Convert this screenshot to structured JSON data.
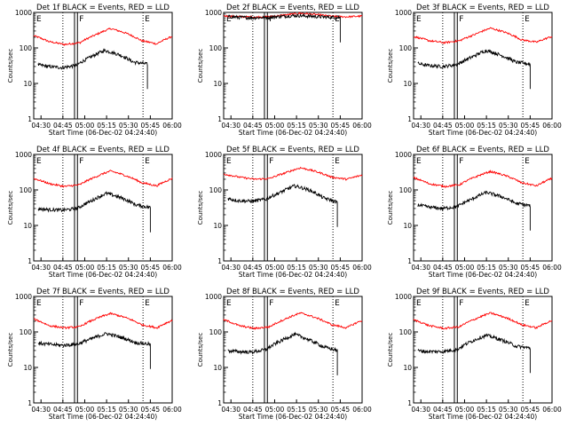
{
  "chart_data": {
    "type": "line",
    "ylabel": "Counts/sec",
    "xlabel": "Start Time (06-Dec-02 04:24:40)",
    "yscale": "log",
    "ylim": [
      1,
      1000
    ],
    "yticks": [
      "1",
      "10",
      "100",
      "1000"
    ],
    "xlim_minutes": [
      0,
      95
    ],
    "xticks": [
      "04:30",
      "04:45",
      "05:00",
      "05:15",
      "05:30",
      "05:45",
      "06:00"
    ],
    "marker_labels": [
      "E",
      "F",
      "E"
    ],
    "series_colors": {
      "events": "#000000",
      "lld": "#ff0000"
    },
    "panels": [
      {
        "title": "Det 1f BLACK = Events, RED = LLD",
        "lld": [
          220,
          150,
          125,
          140,
          230,
          350,
          260,
          160,
          130,
          210
        ],
        "events": [
          35,
          30,
          28,
          32,
          55,
          85,
          65,
          40,
          35,
          0
        ],
        "drop_minute": 78
      },
      {
        "title": "Det 2f BLACK = Events, RED = LLD",
        "lld": [
          800,
          760,
          740,
          760,
          850,
          950,
          870,
          780,
          750,
          790
        ],
        "events": [
          780,
          730,
          710,
          720,
          780,
          820,
          780,
          740,
          720,
          0
        ],
        "drop_minute": 80
      },
      {
        "title": "Det 3f BLACK = Events, RED = LLD",
        "lld": [
          210,
          160,
          140,
          160,
          240,
          360,
          270,
          170,
          145,
          210
        ],
        "events": [
          38,
          32,
          30,
          34,
          55,
          85,
          62,
          40,
          35,
          0
        ],
        "drop_minute": 80
      },
      {
        "title": "Det 4f BLACK = Events, RED = LLD",
        "lld": [
          210,
          150,
          125,
          140,
          230,
          340,
          250,
          160,
          130,
          210
        ],
        "events": [
          30,
          28,
          27,
          30,
          50,
          80,
          60,
          38,
          32,
          0
        ],
        "drop_minute": 80
      },
      {
        "title": "Det 5f BLACK = Events, RED = LLD",
        "lld": [
          280,
          230,
          200,
          210,
          300,
          420,
          330,
          230,
          200,
          260
        ],
        "events": [
          60,
          50,
          48,
          55,
          85,
          130,
          100,
          60,
          45,
          0
        ],
        "drop_minute": 78
      },
      {
        "title": "Det 6f BLACK = Events, RED = LLD",
        "lld": [
          220,
          150,
          125,
          140,
          230,
          330,
          250,
          160,
          130,
          210
        ],
        "events": [
          40,
          33,
          30,
          34,
          55,
          85,
          65,
          42,
          36,
          0
        ],
        "drop_minute": 80
      },
      {
        "title": "Det 7f BLACK = Events, RED = LLD",
        "lld": [
          230,
          150,
          130,
          140,
          230,
          330,
          250,
          160,
          130,
          210
        ],
        "events": [
          50,
          45,
          42,
          45,
          65,
          90,
          70,
          50,
          45,
          0
        ],
        "drop_minute": 80
      },
      {
        "title": "Det 8f BLACK = Events, RED = LLD",
        "lld": [
          220,
          150,
          125,
          140,
          230,
          340,
          250,
          160,
          130,
          210
        ],
        "events": [
          30,
          28,
          27,
          32,
          55,
          85,
          60,
          38,
          30,
          0
        ],
        "drop_minute": 78
      },
      {
        "title": "Det 9f BLACK = Events, RED = LLD",
        "lld": [
          220,
          150,
          125,
          140,
          230,
          340,
          250,
          160,
          130,
          210
        ],
        "events": [
          30,
          28,
          28,
          32,
          55,
          80,
          60,
          40,
          35,
          0
        ],
        "drop_minute": 80
      }
    ]
  }
}
